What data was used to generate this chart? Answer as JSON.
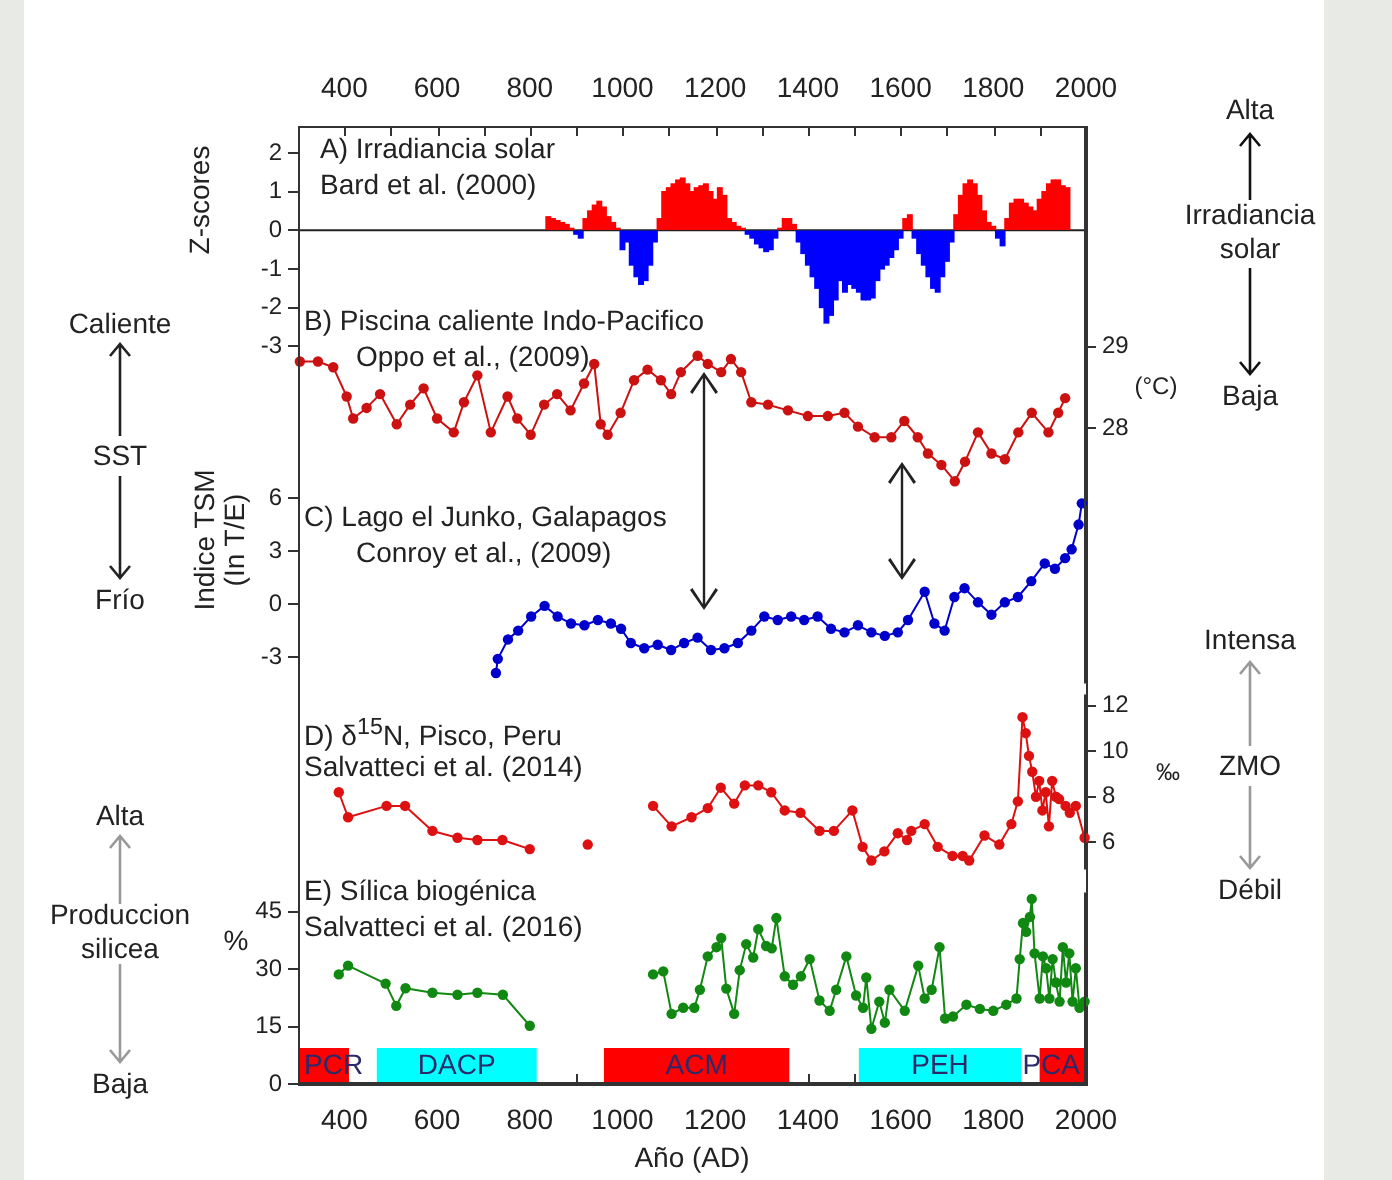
{
  "chart_data": [
    {
      "type": "bar",
      "title": "A) Irradiancia solar",
      "subtitle": "Bard et al. (2000)",
      "ylabel": "Z-scores",
      "annotations": [
        "Alta",
        "Irradiancia solar",
        "Baja"
      ],
      "xlim": [
        300,
        2000
      ],
      "xticks": [
        400,
        {
          "value": 500,
          "label": null
        },
        600,
        {
          "value": 700,
          "label": null
        },
        800,
        {
          "value": 900,
          "label": null
        },
        1000,
        {
          "value": 1100,
          "label": null
        },
        1200,
        {
          "value": 1300,
          "label": null
        },
        1400,
        {
          "value": 1500,
          "label": null
        },
        1600,
        {
          "value": 1700,
          "label": null
        },
        1800,
        {
          "value": 1900,
          "label": null
        },
        2000
      ],
      "ylim": [
        -3.4,
        2.7
      ],
      "yticks": [
        -3,
        -2,
        -1,
        0,
        1,
        2
      ],
      "ref_lines": [
        {
          "axis": "y",
          "value": 0
        }
      ],
      "x": [
        840,
        850,
        860,
        870,
        880,
        890,
        900,
        910,
        920,
        930,
        940,
        950,
        960,
        970,
        980,
        990,
        1000,
        1010,
        1020,
        1030,
        1040,
        1050,
        1060,
        1070,
        1080,
        1090,
        1100,
        1110,
        1120,
        1130,
        1140,
        1150,
        1160,
        1170,
        1180,
        1190,
        1200,
        1210,
        1220,
        1230,
        1240,
        1250,
        1260,
        1270,
        1280,
        1290,
        1300,
        1310,
        1320,
        1330,
        1340,
        1350,
        1360,
        1370,
        1380,
        1390,
        1400,
        1410,
        1420,
        1430,
        1440,
        1450,
        1460,
        1470,
        1480,
        1490,
        1500,
        1510,
        1520,
        1530,
        1540,
        1550,
        1560,
        1570,
        1580,
        1590,
        1600,
        1610,
        1620,
        1630,
        1640,
        1650,
        1660,
        1670,
        1680,
        1690,
        1700,
        1710,
        1720,
        1730,
        1740,
        1750,
        1760,
        1770,
        1780,
        1790,
        1800,
        1810,
        1820,
        1830,
        1840,
        1850,
        1860,
        1870,
        1880,
        1890,
        1900,
        1910,
        1920,
        1930,
        1940,
        1950,
        1960
      ],
      "values": [
        0.35,
        0.3,
        0.25,
        0.2,
        0.15,
        0.05,
        -0.1,
        -0.2,
        0.3,
        0.5,
        0.65,
        0.75,
        0.6,
        0.35,
        0.2,
        0.05,
        -0.5,
        -0.3,
        -0.9,
        -1.2,
        -1.4,
        -1.3,
        -0.9,
        -0.3,
        0.3,
        1.0,
        1.1,
        1.2,
        1.3,
        1.35,
        1.2,
        1.0,
        1.1,
        1.15,
        1.2,
        1.0,
        0.8,
        1.1,
        0.9,
        0.3,
        0.2,
        0.1,
        0.05,
        -0.1,
        -0.2,
        -0.35,
        -0.45,
        -0.55,
        -0.5,
        -0.2,
        0.05,
        0.3,
        0.3,
        0.15,
        -0.3,
        -0.6,
        -0.9,
        -1.2,
        -1.5,
        -2.0,
        -2.4,
        -2.2,
        -1.8,
        -1.3,
        -1.6,
        -1.4,
        -1.5,
        -1.6,
        -1.8,
        -1.8,
        -1.75,
        -1.3,
        -1.0,
        -0.9,
        -0.7,
        -0.5,
        -0.2,
        0.3,
        0.4,
        -0.2,
        -0.6,
        -0.9,
        -1.2,
        -1.5,
        -1.6,
        -1.2,
        -0.8,
        -0.3,
        0.4,
        0.9,
        1.2,
        1.3,
        1.2,
        0.9,
        0.5,
        0.2,
        0.1,
        -0.2,
        -0.4,
        0.3,
        0.7,
        0.8,
        0.8,
        0.7,
        0.6,
        0.5,
        0.8,
        1.0,
        1.2,
        1.3,
        1.3,
        1.15,
        1.1
      ],
      "colors": [
        "#ff0000",
        "#ff0000",
        "#ff0000",
        "#ff0000",
        "#ff0000",
        "#ff0000",
        "#0000ff",
        "#0000ff",
        "#ff0000",
        "#ff0000",
        "#ff0000",
        "#ff0000",
        "#ff0000",
        "#ff0000",
        "#ff0000",
        "#ff0000",
        "#0000ff",
        "#0000ff",
        "#0000ff",
        "#0000ff",
        "#0000ff",
        "#0000ff",
        "#0000ff",
        "#0000ff",
        "#ff0000",
        "#ff0000",
        "#ff0000",
        "#ff0000",
        "#ff0000",
        "#ff0000",
        "#ff0000",
        "#ff0000",
        "#ff0000",
        "#ff0000",
        "#ff0000",
        "#ff0000",
        "#ff0000",
        "#ff0000",
        "#ff0000",
        "#ff0000",
        "#ff0000",
        "#ff0000",
        "#ff0000",
        "#0000ff",
        "#0000ff",
        "#0000ff",
        "#0000ff",
        "#0000ff",
        "#0000ff",
        "#0000ff",
        "#ff0000",
        "#ff0000",
        "#ff0000",
        "#ff0000",
        "#0000ff",
        "#0000ff",
        "#0000ff",
        "#0000ff",
        "#0000ff",
        "#0000ff",
        "#0000ff",
        "#0000ff",
        "#0000ff",
        "#0000ff",
        "#0000ff",
        "#0000ff",
        "#0000ff",
        "#0000ff",
        "#0000ff",
        "#0000ff",
        "#0000ff",
        "#0000ff",
        "#0000ff",
        "#0000ff",
        "#0000ff",
        "#0000ff",
        "#0000ff",
        "#ff0000",
        "#ff0000",
        "#0000ff",
        "#0000ff",
        "#0000ff",
        "#0000ff",
        "#0000ff",
        "#0000ff",
        "#0000ff",
        "#0000ff",
        "#0000ff",
        "#ff0000",
        "#ff0000",
        "#ff0000",
        "#ff0000",
        "#ff0000",
        "#ff0000",
        "#ff0000",
        "#ff0000",
        "#ff0000",
        "#0000ff",
        "#0000ff",
        "#ff0000",
        "#ff0000",
        "#ff0000",
        "#ff0000",
        "#ff0000",
        "#ff0000",
        "#ff0000",
        "#ff0000",
        "#ff0000",
        "#ff0000",
        "#ff0000",
        "#ff0000",
        "#ff0000",
        "#ff0000"
      ]
    },
    {
      "type": "line",
      "title": "B) Piscina caliente Indo-Pacifico",
      "subtitle": "Oppo et al., (2009)",
      "y2label": "(°C)",
      "tick_labels": "y",
      "marker": "circle",
      "line_style": "solid",
      "annotations": [
        "Caliente",
        "SST",
        "Frío"
      ],
      "xlim": [
        300,
        2000
      ],
      "y2lim": [
        27.1,
        29.3
      ],
      "y2ticks": [
        28,
        29
      ],
      "x": [
        304,
        343,
        376,
        405,
        419,
        448,
        477,
        513,
        542,
        571,
        600,
        636,
        658,
        687,
        716,
        752,
        773,
        802,
        831,
        859,
        888,
        917,
        939,
        953,
        968,
        996,
        1025,
        1054,
        1083,
        1105,
        1126,
        1162,
        1184,
        1213,
        1234,
        1256,
        1278,
        1314,
        1357,
        1400,
        1443,
        1479,
        1508,
        1544,
        1580,
        1608,
        1637,
        1659,
        1688,
        1717,
        1739,
        1767,
        1796,
        1825,
        1854,
        1883,
        1919,
        1940,
        1955
      ],
      "series": [
        {
          "color": "#cc1111",
          "axis": "y2",
          "values": [
            28.82,
            28.82,
            28.75,
            28.39,
            28.12,
            28.25,
            28.42,
            28.05,
            28.29,
            28.49,
            28.12,
            27.95,
            28.32,
            28.65,
            27.95,
            28.39,
            28.12,
            27.92,
            28.29,
            28.42,
            28.22,
            28.55,
            28.79,
            28.05,
            27.92,
            28.19,
            28.59,
            28.72,
            28.59,
            28.42,
            28.69,
            28.89,
            28.79,
            28.69,
            28.85,
            28.69,
            28.32,
            28.29,
            28.22,
            28.15,
            28.15,
            28.19,
            28.02,
            27.89,
            27.89,
            28.09,
            27.89,
            27.69,
            27.55,
            27.35,
            27.59,
            27.95,
            27.69,
            27.62,
            27.95,
            28.19,
            27.95,
            28.19,
            28.37
          ]
        }
      ]
    },
    {
      "type": "line",
      "title": "C) Lago el Junko, Galapagos",
      "subtitle": "Conroy et al., (2009)",
      "ylabel": "Indice TSM (In T/E)",
      "tick_labels": "y",
      "marker": "circle",
      "line_style": "solid",
      "xlim": [
        300,
        2000
      ],
      "ylim": [
        -4.5,
        7
      ],
      "yticks": [
        -3,
        0,
        3,
        6
      ],
      "x": [
        727,
        731,
        753,
        775,
        803,
        832,
        860,
        889,
        918,
        947,
        975,
        997,
        1018,
        1047,
        1076,
        1105,
        1133,
        1162,
        1191,
        1220,
        1249,
        1278,
        1306,
        1335,
        1364,
        1392,
        1421,
        1450,
        1479,
        1508,
        1537,
        1566,
        1594,
        1616,
        1652,
        1673,
        1695,
        1716,
        1738,
        1767,
        1796,
        1825,
        1853,
        1882,
        1911,
        1933,
        1955,
        1969,
        1984,
        1991
      ],
      "series": [
        {
          "color": "#0000cc",
          "values": [
            -3.9,
            -3.1,
            -2.0,
            -1.5,
            -0.7,
            -0.1,
            -0.7,
            -1.1,
            -1.2,
            -0.9,
            -1.1,
            -1.4,
            -2.2,
            -2.5,
            -2.3,
            -2.6,
            -2.2,
            -1.9,
            -2.6,
            -2.5,
            -2.2,
            -1.5,
            -0.7,
            -0.9,
            -0.7,
            -0.9,
            -0.7,
            -1.4,
            -1.6,
            -1.2,
            -1.6,
            -1.8,
            -1.6,
            -0.9,
            0.7,
            -1.1,
            -1.5,
            0.4,
            0.9,
            0.1,
            -0.6,
            0.1,
            0.4,
            1.3,
            2.3,
            2.0,
            2.6,
            3.1,
            4.5,
            5.7
          ]
        }
      ]
    },
    {
      "type": "line",
      "title": "D) δ$^{15}$N, Pisco, Peru",
      "subtitle": "Salvatteci et al. (2014)",
      "y2label": "‰",
      "tick_labels": "y",
      "marker": "circle",
      "line_style": "solid",
      "annotations": [
        "Intensa",
        "ZMO",
        "Débil"
      ],
      "xlim": [
        300,
        2000
      ],
      "y2lim": [
        4.8,
        12.5
      ],
      "y2ticks": [
        6,
        8,
        10,
        12
      ],
      "x": [
        388,
        408,
        491,
        531,
        590,
        644,
        687,
        741,
        800,
        860,
        925,
        1000,
        1066,
        1106,
        1149,
        1184,
        1212,
        1241,
        1264,
        1293,
        1321,
        1350,
        1384,
        1425,
        1456,
        1496,
        1518,
        1537,
        1565,
        1594,
        1614,
        1623,
        1652,
        1680,
        1712,
        1734,
        1748,
        1781,
        1813,
        1839,
        1853,
        1863,
        1870,
        1877,
        1884,
        1892,
        1899,
        1906,
        1913,
        1920,
        1927,
        1935,
        1942,
        1956,
        1965,
        1978,
        1997
      ],
      "series": [
        {
          "color": "#dd1111",
          "axis": "y2",
          "values": [
            8.2,
            7.1,
            7.6,
            7.6,
            6.5,
            6.2,
            6.1,
            6.1,
            5.7,
            null,
            5.9,
            null,
            7.6,
            6.7,
            7.1,
            7.5,
            8.4,
            7.7,
            8.5,
            8.5,
            8.2,
            7.4,
            7.3,
            6.5,
            6.5,
            7.4,
            5.8,
            5.2,
            5.6,
            6.4,
            6.1,
            6.5,
            6.8,
            5.8,
            5.4,
            5.4,
            5.2,
            6.3,
            5.9,
            6.8,
            7.8,
            11.5,
            10.8,
            9.8,
            9.1,
            8.0,
            8.7,
            7.4,
            8.2,
            6.7,
            8.7,
            8.0,
            7.9,
            7.6,
            7.3,
            7.6,
            6.2
          ]
        }
      ]
    },
    {
      "type": "line",
      "title": "E) Sílica biogénica",
      "subtitle": "Salvatteci et al. (2016)",
      "ylabel": "%",
      "xlabel": "Año (AD)",
      "marker": "circle",
      "line_style": "solid",
      "annotations": [
        "Alta",
        "Produccion silicea",
        "Baja"
      ],
      "xlim": [
        300,
        2000
      ],
      "xticks": [
        400,
        {
          "value": 500,
          "label": null
        },
        600,
        {
          "value": 700,
          "label": null
        },
        800,
        {
          "value": 900,
          "label": null
        },
        1000,
        {
          "value": 1100,
          "label": null
        },
        1200,
        {
          "value": 1300,
          "label": null
        },
        1400,
        {
          "value": 1500,
          "label": null
        },
        1600,
        {
          "value": 1700,
          "label": null
        },
        1800,
        {
          "value": 1900,
          "label": null
        },
        2000
      ],
      "ylim": [
        0,
        50
      ],
      "yticks": [
        0,
        15,
        30,
        45
      ],
      "bands": [
        {
          "axis": "x",
          "from": 300,
          "to": 410,
          "label": "PCR",
          "color": "#ff0000"
        },
        {
          "axis": "x",
          "from": 470,
          "to": 815,
          "label": "DACP",
          "color": "#00ffff"
        },
        {
          "axis": "x",
          "from": 960,
          "to": 1360,
          "label": "ACM",
          "color": "#ff0000"
        },
        {
          "axis": "x",
          "from": 1510,
          "to": 1860,
          "label": "PEH",
          "color": "#00ffff"
        },
        {
          "axis": "x",
          "from": 1900,
          "to": 2000,
          "label": "PCA",
          "color": "#ff0000"
        }
      ],
      "x": [
        388,
        408,
        489,
        512,
        532,
        590,
        644,
        687,
        742,
        800,
        930,
        1066,
        1088,
        1106,
        1131,
        1155,
        1167,
        1184,
        1203,
        1213,
        1224,
        1241,
        1253,
        1267,
        1282,
        1293,
        1310,
        1322,
        1332,
        1350,
        1368,
        1385,
        1404,
        1425,
        1447,
        1461,
        1483,
        1504,
        1519,
        1526,
        1537,
        1554,
        1566,
        1576,
        1609,
        1638,
        1652,
        1667,
        1684,
        1696,
        1713,
        1742,
        1771,
        1800,
        1828,
        1850,
        1857,
        1864,
        1871,
        1879,
        1883,
        1889,
        1900,
        1907,
        1914,
        1921,
        1928,
        1935,
        1943,
        1950,
        1957,
        1964,
        1971,
        1978,
        1986,
        1997
      ],
      "series": [
        {
          "color": "#118811",
          "values": [
            28.6,
            30.9,
            26.2,
            20.4,
            25.0,
            23.8,
            23.3,
            23.8,
            23.3,
            15.2,
            null,
            28.6,
            29.4,
            18.3,
            19.9,
            19.9,
            24.6,
            33.3,
            35.7,
            38.1,
            24.9,
            18.3,
            29.7,
            36.5,
            33.0,
            40.4,
            36.0,
            35.4,
            43.3,
            28.1,
            25.9,
            28.1,
            32.6,
            21.8,
            19.1,
            24.6,
            33.3,
            23.1,
            19.9,
            27.8,
            14.4,
            21.5,
            16.0,
            24.6,
            19.1,
            30.9,
            22.3,
            24.6,
            35.7,
            17.1,
            17.6,
            20.7,
            19.6,
            19.1,
            20.7,
            22.3,
            32.6,
            42.0,
            39.7,
            43.6,
            48.3,
            34.1,
            22.3,
            33.3,
            30.2,
            22.3,
            32.6,
            26.5,
            21.5,
            35.7,
            26.5,
            34.1,
            21.5,
            30.2,
            19.9,
            21.5
          ]
        }
      ]
    }
  ]
}
